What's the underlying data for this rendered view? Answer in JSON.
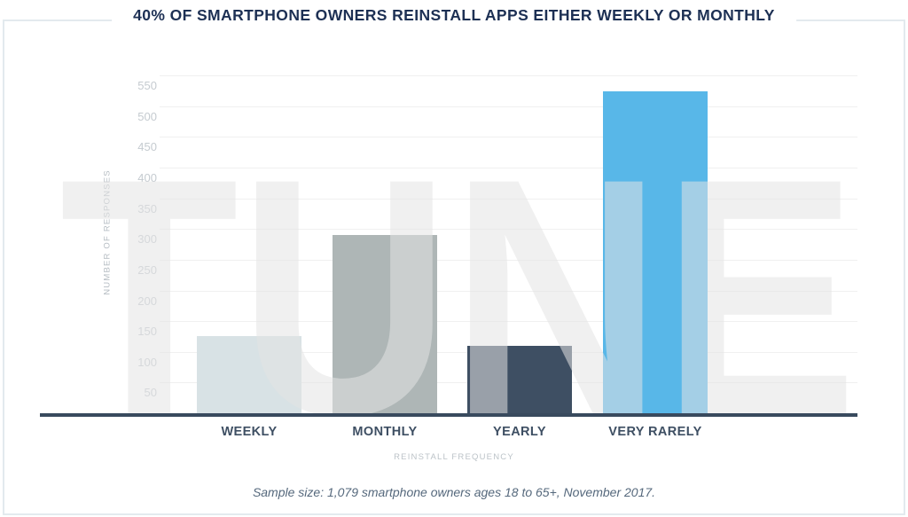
{
  "title": "40% OF SMARTPHONE OWNERS REINSTALL APPS EITHER WEEKLY OR MONTHLY",
  "watermark": "TUNE",
  "footer": "Sample size: 1,079 smartphone owners ages 18 to 65+, November 2017.",
  "chart_data": {
    "type": "bar",
    "title": "40% OF SMARTPHONE OWNERS REINSTALL APPS EITHER WEEKLY OR MONTHLY",
    "categories": [
      "WEEKLY",
      "MONTHLY",
      "YEARLY",
      "VERY RARELY"
    ],
    "values": [
      125,
      290,
      110,
      525
    ],
    "xlabel": "REINSTALL FREQUENCY",
    "ylabel": "NUMBER OF RESPONSES",
    "ylim": [
      0,
      575
    ],
    "yticks": [
      50,
      100,
      150,
      200,
      250,
      300,
      350,
      400,
      450,
      500,
      550
    ],
    "grid": true,
    "legend": false,
    "bar_colors": [
      "#d8e2e5",
      "#aeb6b6",
      "#3e4f63",
      "#58b7e8"
    ]
  },
  "colors": {
    "title_text": "#1d3054",
    "frame_border": "#e3eaee",
    "gridline": "#f0f0f0",
    "tick_label": "#c5cbd0",
    "axis_title": "#b9c0c6",
    "category_label": "#3e4f63",
    "axis_line": "#394a5e",
    "footer_text": "#55687c",
    "watermark": "#e3e3e3"
  }
}
